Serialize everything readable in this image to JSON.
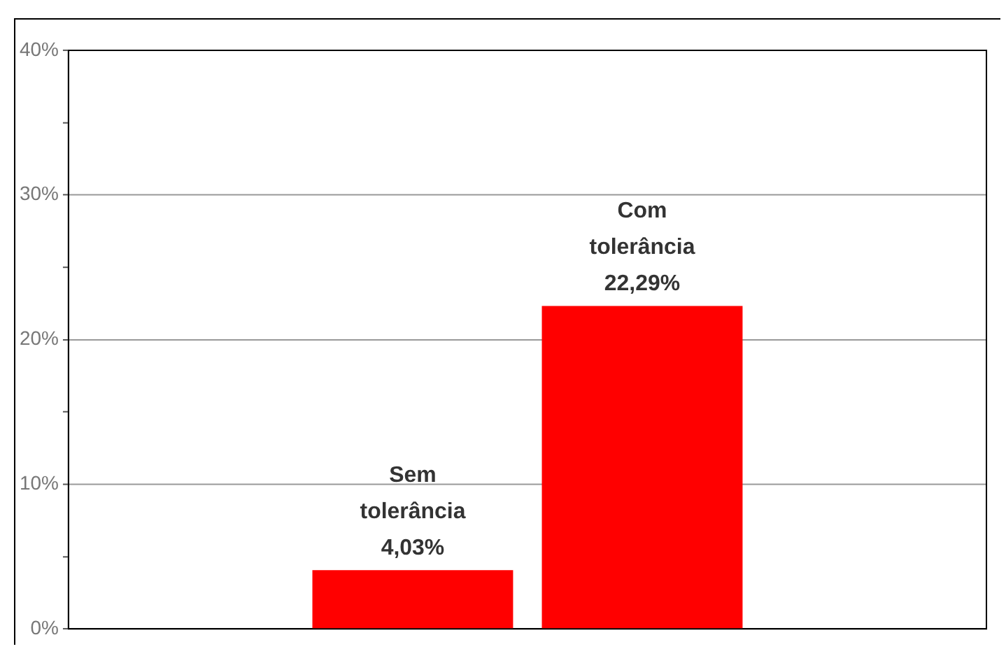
{
  "chart_data": {
    "type": "bar",
    "categories": [
      "Sem tolerância",
      "Com tolerância"
    ],
    "values": [
      4.03,
      22.29
    ],
    "color": "#ff0000",
    "value_labels": [
      "4,03%",
      "22,29%"
    ],
    "ylim": [
      0,
      40
    ],
    "yticks": [
      {
        "value": 0,
        "label": "0%"
      },
      {
        "value": 5,
        "label": null
      },
      {
        "value": 10,
        "label": "10%"
      },
      {
        "value": 15,
        "label": null
      },
      {
        "value": 20,
        "label": "20%"
      },
      {
        "value": 25,
        "label": null
      },
      {
        "value": 30,
        "label": "30%"
      },
      {
        "value": 35,
        "label": null
      },
      {
        "value": 40,
        "label": "40%"
      }
    ],
    "grid": "y",
    "legend": false
  }
}
